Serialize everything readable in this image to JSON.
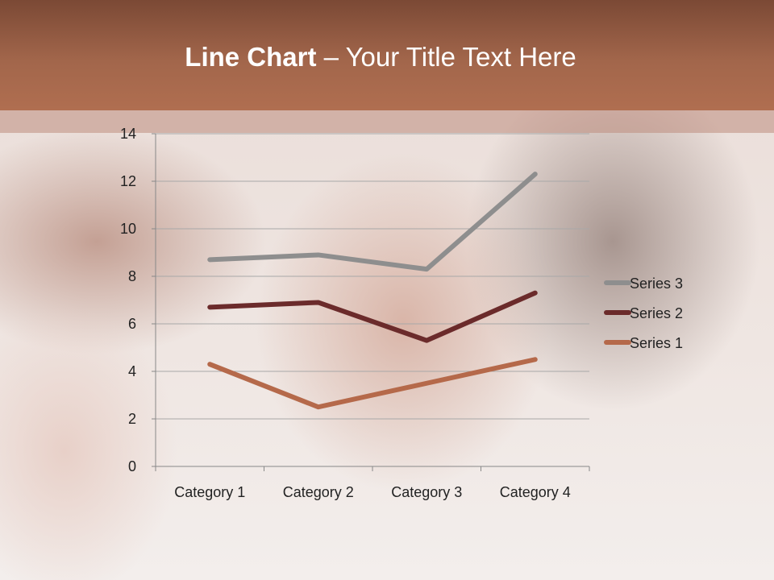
{
  "title": {
    "bold": "Line Chart",
    "rest": " – Your Title Text Here"
  },
  "chart_data": {
    "type": "line",
    "title": "",
    "xlabel": "",
    "ylabel": "",
    "categories": [
      "Category 1",
      "Category 2",
      "Category 3",
      "Category 4"
    ],
    "ylim": [
      0,
      14
    ],
    "yticks": [
      0,
      2,
      4,
      6,
      8,
      10,
      12,
      14
    ],
    "grid": true,
    "legend": "right",
    "series": [
      {
        "name": "Series 1",
        "values": [
          4.3,
          2.5,
          3.5,
          4.5
        ],
        "color": "#b5694a"
      },
      {
        "name": "Series 2",
        "values": [
          6.7,
          6.9,
          5.3,
          7.3
        ],
        "color": "#6b2b2b"
      },
      {
        "name": "Series 3",
        "values": [
          8.7,
          8.9,
          8.3,
          12.3
        ],
        "color": "#8e8e8e"
      }
    ]
  }
}
